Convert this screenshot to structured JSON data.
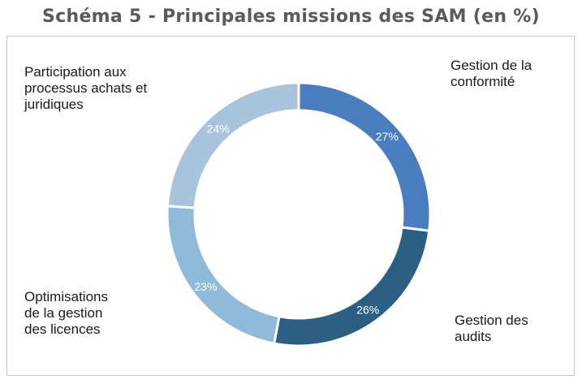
{
  "chart_data": {
    "type": "pie",
    "title": "Schéma 5 - Principales missions des SAM (en %)",
    "categories": [
      "Gestion de la conformité",
      "Gestion des audits",
      "Optimisations de la gestion des licences",
      "Participation aux processus achats et juridiques"
    ],
    "category_lines": [
      [
        "Gestion de la",
        "conformité"
      ],
      [
        "Gestion des",
        "audits"
      ],
      [
        "Optimisations",
        "de la gestion",
        "des licences"
      ],
      [
        "Participation aux",
        "processus achats et",
        "juridiques"
      ]
    ],
    "values": [
      27,
      26,
      23,
      24
    ],
    "value_labels": [
      "27%",
      "26%",
      "23%",
      "24%"
    ],
    "colors": [
      "#4a7cc0",
      "#2c5f84",
      "#8fbad8",
      "#a8c4dc"
    ],
    "label_color": "#ffffff",
    "legend": "none"
  }
}
